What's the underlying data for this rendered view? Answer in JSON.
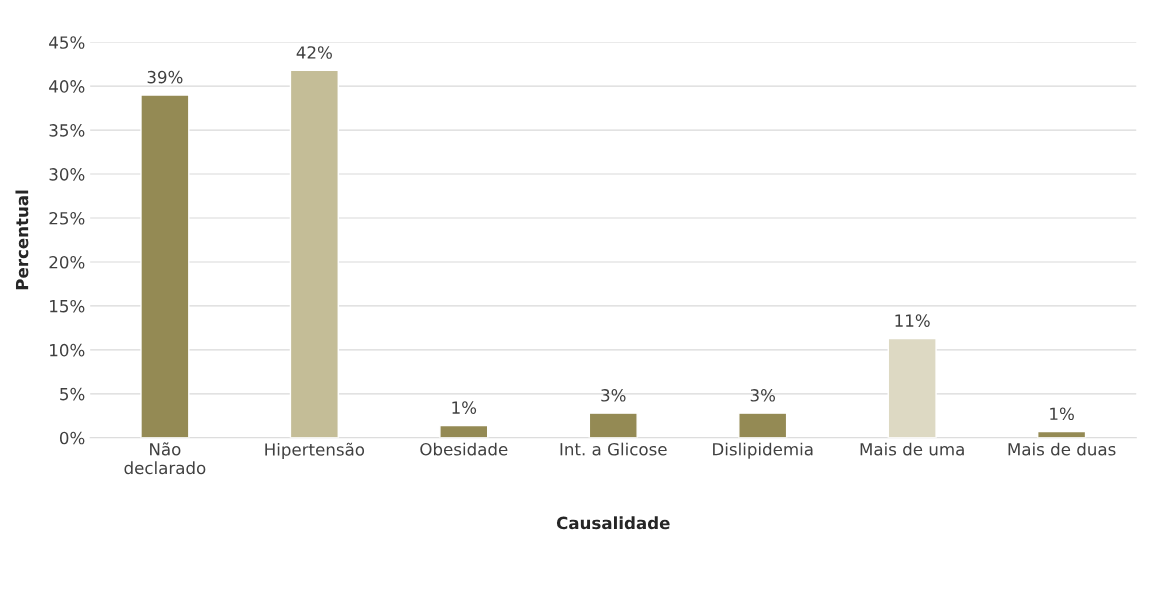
{
  "chart_data": {
    "type": "bar",
    "xlabel": "Causalidade",
    "ylabel": "Percentual",
    "categories": [
      "Não\ndeclarado",
      "Hipertensão",
      "Obesidade",
      "Int. a Glicose",
      "Dislipidemia",
      "Mais de uma",
      "Mais de duas"
    ],
    "values": [
      39,
      41.8,
      1.4,
      2.8,
      2.8,
      11.3,
      0.7
    ],
    "value_labels": [
      "39%",
      "42%",
      "1%",
      "3%",
      "3%",
      "11%",
      "1%"
    ],
    "colors": [
      "#948a54",
      "#c4bd97",
      "#948a54",
      "#948a54",
      "#948a54",
      "#ddd9c3",
      "#948a54"
    ],
    "ylim": [
      0,
      45
    ],
    "yticks": [
      {
        "value": 0,
        "label": "0%"
      },
      {
        "value": 5,
        "label": "5%"
      },
      {
        "value": 10,
        "label": "10%"
      },
      {
        "value": 15,
        "label": "15%"
      },
      {
        "value": 20,
        "label": "20%"
      },
      {
        "value": 25,
        "label": "25%"
      },
      {
        "value": 30,
        "label": "30%"
      },
      {
        "value": 35,
        "label": "35%"
      },
      {
        "value": 40,
        "label": "40%"
      },
      {
        "value": 45,
        "label": "45%"
      }
    ],
    "grid": "y",
    "legend": false
  }
}
